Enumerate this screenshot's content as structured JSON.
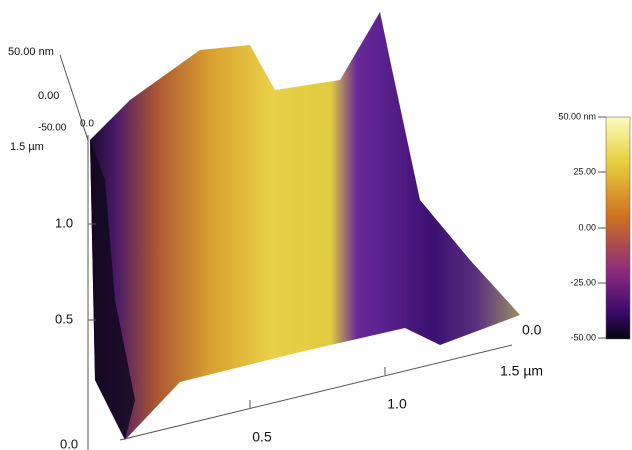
{
  "z_axis": {
    "labels": [
      "50.00 nm",
      "0.00",
      "-50.00",
      "0.0"
    ]
  },
  "y_axis": {
    "labels": [
      "1.5 µm",
      "1.0",
      "0.5",
      "0.0"
    ]
  },
  "x_axis": {
    "labels": [
      "0.5",
      "1.0",
      "1.5 µm",
      "0.0"
    ]
  },
  "colorbar": {
    "labels": [
      "50.00 nm",
      "25.00",
      "0.00",
      "-25.00",
      "-50.00"
    ]
  }
}
